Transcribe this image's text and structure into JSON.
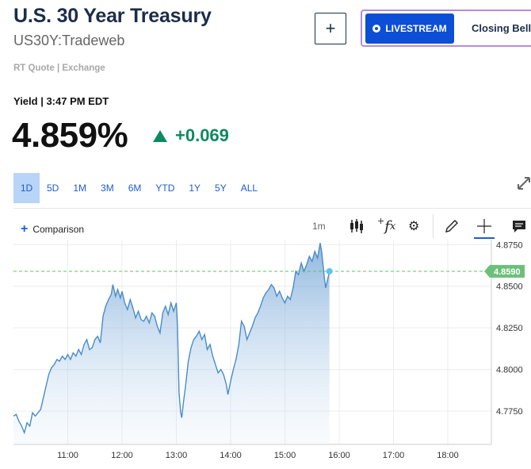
{
  "header": {
    "title": "U.S. 30 Year Treasury",
    "symbol": "US30Y:Tradeweb",
    "quote_source": "RT Quote | Exchange",
    "add_label": "+",
    "livestream_label": "LIVESTREAM",
    "closing_bell_label": "Closing Bell"
  },
  "quote": {
    "yield_label": "Yield | 3:47 PM EDT",
    "price": "4.859%",
    "change": "+0.069",
    "change_color": "#0e8a5f"
  },
  "ranges": [
    "1D",
    "5D",
    "1M",
    "3M",
    "6M",
    "YTD",
    "1Y",
    "5Y",
    "ALL"
  ],
  "active_range": "1D",
  "toolbar": {
    "comparison_label": "Comparison",
    "interval_label": "1m",
    "icons": [
      "candlestick-icon",
      "function-icon",
      "gear-icon",
      "pencil-icon",
      "crosshair-icon",
      "comment-icon"
    ]
  },
  "chart_data": {
    "type": "area",
    "x_ticks": [
      "11:00",
      "12:00",
      "13:00",
      "14:00",
      "15:00",
      "16:00",
      "17:00",
      "18:00"
    ],
    "y_ticks": [
      "4.8750",
      "4.8500",
      "4.8250",
      "4.8000",
      "4.7750"
    ],
    "ylim": [
      4.755,
      4.878
    ],
    "last_value_label": "4.8590",
    "last_value": 4.859,
    "line_color": "#4a8cc7",
    "series": [
      {
        "values": [
          [
            10.0,
            4.772
          ],
          [
            10.05,
            4.773
          ],
          [
            10.1,
            4.769
          ],
          [
            10.15,
            4.766
          ],
          [
            10.2,
            4.762
          ],
          [
            10.25,
            4.768
          ],
          [
            10.3,
            4.766
          ],
          [
            10.35,
            4.774
          ],
          [
            10.4,
            4.772
          ],
          [
            10.5,
            4.776
          ],
          [
            10.55,
            4.783
          ],
          [
            10.6,
            4.79
          ],
          [
            10.65,
            4.797
          ],
          [
            10.7,
            4.801
          ],
          [
            10.75,
            4.803
          ],
          [
            10.8,
            4.806
          ],
          [
            10.85,
            4.805
          ],
          [
            10.9,
            4.808
          ],
          [
            10.95,
            4.806
          ],
          [
            11.0,
            4.809
          ],
          [
            11.05,
            4.806
          ],
          [
            11.1,
            4.81
          ],
          [
            11.15,
            4.808
          ],
          [
            11.2,
            4.812
          ],
          [
            11.25,
            4.809
          ],
          [
            11.3,
            4.815
          ],
          [
            11.35,
            4.818
          ],
          [
            11.4,
            4.812
          ],
          [
            11.45,
            4.813
          ],
          [
            11.5,
            4.818
          ],
          [
            11.55,
            4.82
          ],
          [
            11.6,
            4.816
          ],
          [
            11.65,
            4.832
          ],
          [
            11.7,
            4.838
          ],
          [
            11.75,
            4.842
          ],
          [
            11.8,
            4.845
          ],
          [
            11.83,
            4.851
          ],
          [
            11.88,
            4.844
          ],
          [
            11.92,
            4.848
          ],
          [
            11.97,
            4.843
          ],
          [
            12.0,
            4.847
          ],
          [
            12.05,
            4.84
          ],
          [
            12.1,
            4.836
          ],
          [
            12.15,
            4.842
          ],
          [
            12.2,
            4.837
          ],
          [
            12.25,
            4.831
          ],
          [
            12.3,
            4.835
          ],
          [
            12.35,
            4.83
          ],
          [
            12.4,
            4.829
          ],
          [
            12.45,
            4.832
          ],
          [
            12.5,
            4.828
          ],
          [
            12.55,
            4.834
          ],
          [
            12.6,
            4.832
          ],
          [
            12.65,
            4.826
          ],
          [
            12.7,
            4.822
          ],
          [
            12.75,
            4.834
          ],
          [
            12.8,
            4.838
          ],
          [
            12.85,
            4.833
          ],
          [
            12.9,
            4.84
          ],
          [
            12.95,
            4.835
          ],
          [
            13.0,
            4.84
          ],
          [
            13.02,
            4.827
          ],
          [
            13.05,
            4.786
          ],
          [
            13.08,
            4.774
          ],
          [
            13.1,
            4.771
          ],
          [
            13.13,
            4.78
          ],
          [
            13.17,
            4.79
          ],
          [
            13.22,
            4.805
          ],
          [
            13.27,
            4.813
          ],
          [
            13.32,
            4.818
          ],
          [
            13.37,
            4.82
          ],
          [
            13.42,
            4.823
          ],
          [
            13.47,
            4.818
          ],
          [
            13.52,
            4.821
          ],
          [
            13.57,
            4.812
          ],
          [
            13.62,
            4.815
          ],
          [
            13.67,
            4.808
          ],
          [
            13.72,
            4.803
          ],
          [
            13.77,
            4.798
          ],
          [
            13.82,
            4.8
          ],
          [
            13.87,
            4.797
          ],
          [
            13.92,
            4.791
          ],
          [
            13.95,
            4.785
          ],
          [
            14.0,
            4.793
          ],
          [
            14.05,
            4.8
          ],
          [
            14.1,
            4.806
          ],
          [
            14.15,
            4.815
          ],
          [
            14.2,
            4.829
          ],
          [
            14.25,
            4.826
          ],
          [
            14.3,
            4.818
          ],
          [
            14.35,
            4.822
          ],
          [
            14.4,
            4.826
          ],
          [
            14.45,
            4.831
          ],
          [
            14.5,
            4.834
          ],
          [
            14.55,
            4.838
          ],
          [
            14.6,
            4.843
          ],
          [
            14.65,
            4.846
          ],
          [
            14.7,
            4.848
          ],
          [
            14.75,
            4.851
          ],
          [
            14.8,
            4.849
          ],
          [
            14.85,
            4.844
          ],
          [
            14.9,
            4.847
          ],
          [
            14.95,
            4.843
          ],
          [
            15.0,
            4.84
          ],
          [
            15.05,
            4.844
          ],
          [
            15.1,
            4.842
          ],
          [
            15.15,
            4.849
          ],
          [
            15.2,
            4.859
          ],
          [
            15.25,
            4.857
          ],
          [
            15.3,
            4.864
          ],
          [
            15.35,
            4.859
          ],
          [
            15.4,
            4.863
          ],
          [
            15.45,
            4.868
          ],
          [
            15.5,
            4.865
          ],
          [
            15.55,
            4.871
          ],
          [
            15.6,
            4.867
          ],
          [
            15.65,
            4.876
          ],
          [
            15.68,
            4.87
          ],
          [
            15.72,
            4.857
          ],
          [
            15.75,
            4.849
          ],
          [
            15.78,
            4.853
          ],
          [
            15.82,
            4.859
          ]
        ]
      }
    ]
  }
}
